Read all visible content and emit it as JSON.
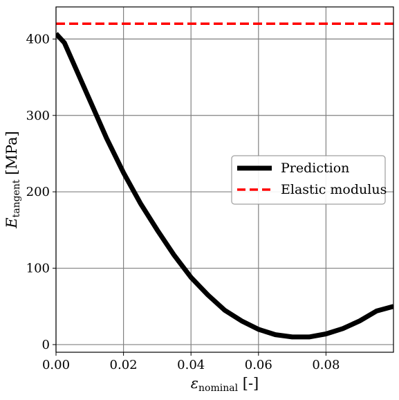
{
  "chart_data": {
    "type": "line",
    "xlabel": {
      "symbol": "ε",
      "subscript": "nominal",
      "unit": " [-]"
    },
    "ylabel": {
      "symbol": "E",
      "subscript": "tangent",
      "unit": " [MPa]"
    },
    "xlim": [
      0,
      0.1
    ],
    "ylim": [
      -10,
      442
    ],
    "xticks": [
      0.0,
      0.02,
      0.04,
      0.06,
      0.08
    ],
    "xtick_labels": [
      "0.00",
      "0.02",
      "0.04",
      "0.06",
      "0.08"
    ],
    "yticks": [
      0,
      100,
      200,
      300,
      400
    ],
    "ytick_labels": [
      "0",
      "100",
      "200",
      "300",
      "400"
    ],
    "grid": true,
    "legend_position": "center-right",
    "series": [
      {
        "name": "Prediction",
        "color": "#000000",
        "style": "solid",
        "x": [
          0.0,
          0.0025,
          0.005,
          0.01,
          0.015,
          0.02,
          0.025,
          0.03,
          0.035,
          0.04,
          0.045,
          0.05,
          0.055,
          0.06,
          0.065,
          0.07,
          0.073,
          0.075,
          0.08,
          0.085,
          0.09,
          0.095,
          0.1
        ],
        "y": [
          407,
          395,
          370,
          320,
          270,
          225,
          185,
          150,
          117,
          88,
          65,
          45,
          31,
          20,
          13,
          10,
          10,
          10,
          14,
          21,
          31,
          44,
          50
        ]
      },
      {
        "name": "Elastic modulus",
        "color": "#ff0000",
        "style": "dashed",
        "x": [
          0.0,
          0.1
        ],
        "y": [
          420,
          420
        ]
      }
    ]
  }
}
